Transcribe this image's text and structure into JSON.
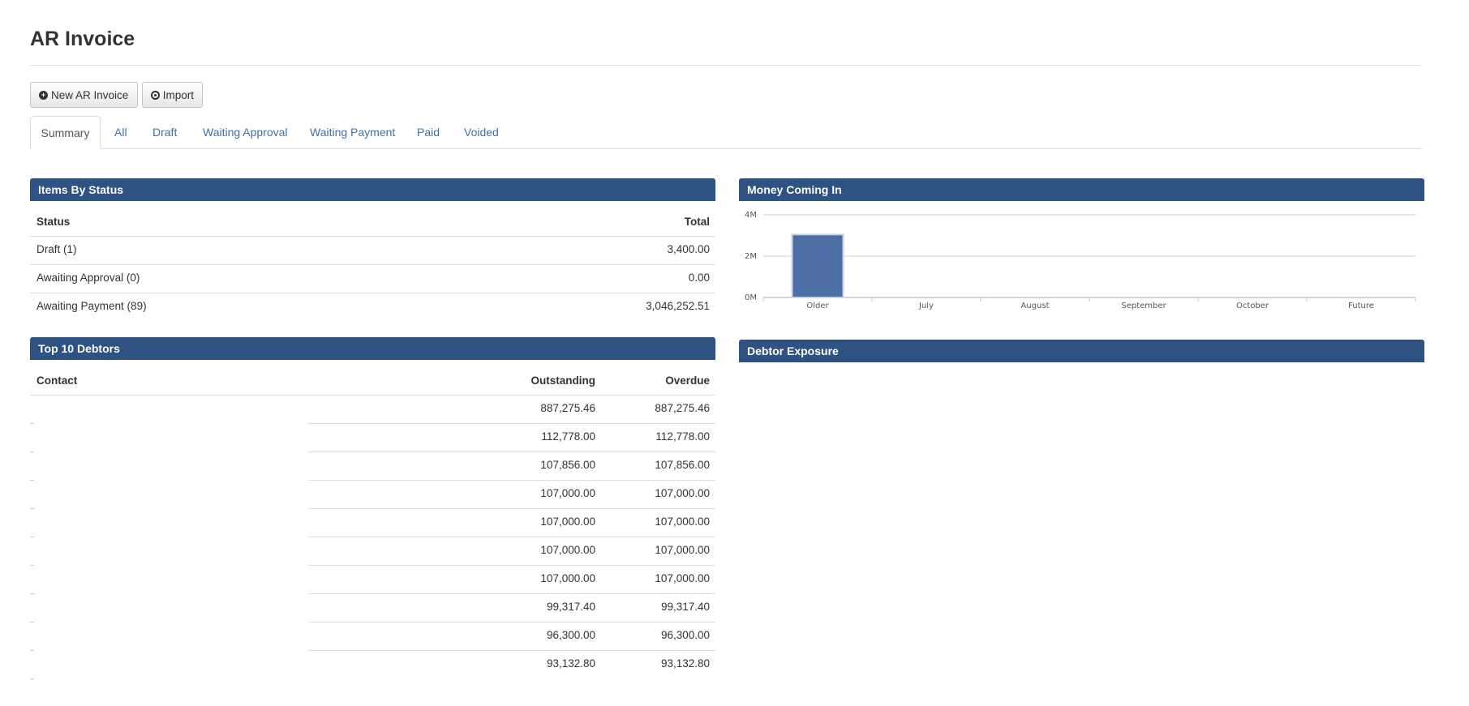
{
  "page": {
    "title": "AR Invoice"
  },
  "toolbar": {
    "new_label": "New AR Invoice",
    "import_label": "Import"
  },
  "tabs": [
    "Summary",
    "All",
    "Draft",
    "Waiting Approval",
    "Waiting Payment",
    "Paid",
    "Voided"
  ],
  "status_panel": {
    "title": "Items By Status",
    "headers": [
      "Status",
      "Total"
    ],
    "rows": [
      {
        "status": "Draft (1)",
        "total": "3,400.00"
      },
      {
        "status": "Awaiting Approval (0)",
        "total": "0.00"
      },
      {
        "status": "Awaiting Payment (89)",
        "total": "3,046,252.51"
      }
    ]
  },
  "debtors_panel": {
    "title": "Top 10 Debtors",
    "headers": [
      "Contact",
      "Outstanding",
      "Overdue"
    ],
    "rows": [
      {
        "contact": "",
        "outstanding": "887,275.46",
        "overdue": "887,275.46"
      },
      {
        "contact": "",
        "outstanding": "112,778.00",
        "overdue": "112,778.00"
      },
      {
        "contact": "",
        "outstanding": "107,856.00",
        "overdue": "107,856.00"
      },
      {
        "contact": "",
        "outstanding": "107,000.00",
        "overdue": "107,000.00"
      },
      {
        "contact": "",
        "outstanding": "107,000.00",
        "overdue": "107,000.00"
      },
      {
        "contact": "",
        "outstanding": "107,000.00",
        "overdue": "107,000.00"
      },
      {
        "contact": "",
        "outstanding": "107,000.00",
        "overdue": "107,000.00"
      },
      {
        "contact": "",
        "outstanding": "99,317.40",
        "overdue": "99,317.40"
      },
      {
        "contact": "",
        "outstanding": "96,300.00",
        "overdue": "96,300.00"
      },
      {
        "contact": "",
        "outstanding": "93,132.80",
        "overdue": "93,132.80"
      }
    ]
  },
  "money_panel": {
    "title": "Money Coming In"
  },
  "exposure_panel": {
    "title": "Debtor Exposure"
  },
  "chart_data": {
    "type": "bar",
    "categories": [
      "Older",
      "July",
      "August",
      "September",
      "October",
      "Future"
    ],
    "values": [
      3046252.51,
      0,
      0,
      0,
      0,
      0
    ],
    "y_ticks": [
      "0M",
      "2M",
      "4M"
    ],
    "ylim": [
      0,
      4000000
    ],
    "grid": true,
    "bar_color": "#4e6fa5"
  },
  "colors": {
    "panel_header": "#2e5282",
    "tab_link": "#3b73a8"
  }
}
